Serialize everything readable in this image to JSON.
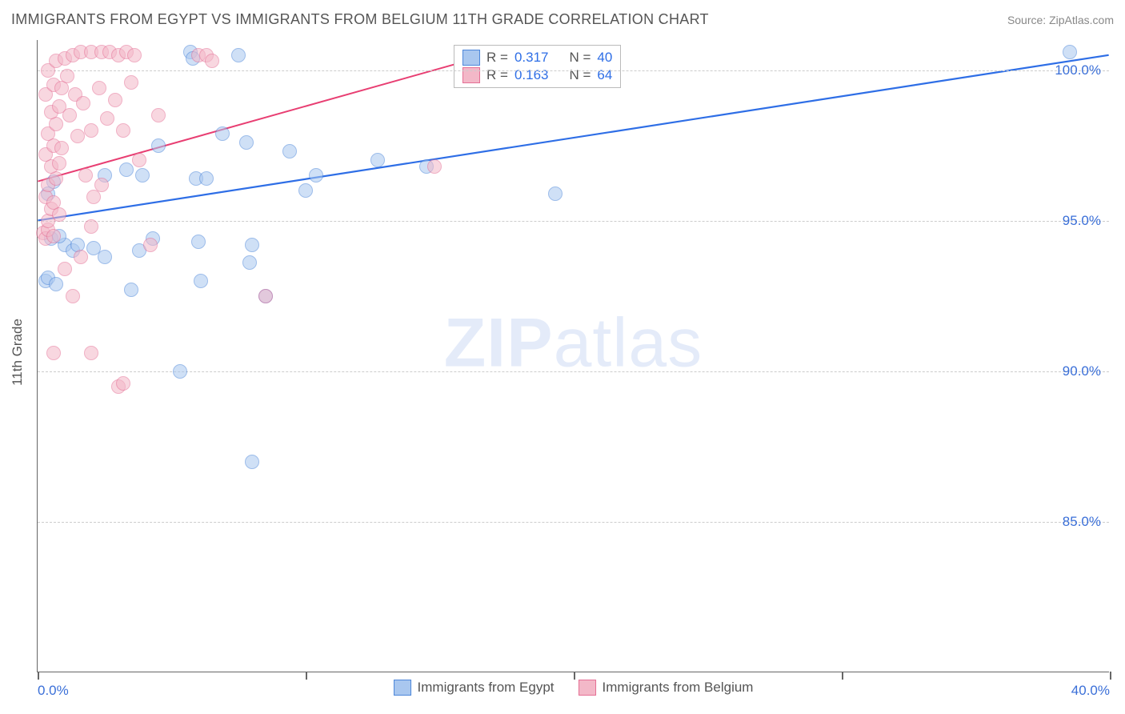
{
  "title": "IMMIGRANTS FROM EGYPT VS IMMIGRANTS FROM BELGIUM 11TH GRADE CORRELATION CHART",
  "source": "Source: ZipAtlas.com",
  "y_axis_title": "11th Grade",
  "watermark_a": "ZIP",
  "watermark_b": "atlas",
  "chart": {
    "type": "scatter",
    "xlim": [
      0,
      40
    ],
    "ylim": [
      80,
      101
    ],
    "x_unit": "%",
    "y_unit": "%",
    "x_ticks": [
      0,
      10,
      20,
      30,
      40
    ],
    "x_tick_labels": [
      "0.0%",
      "",
      "",
      "",
      "40.0%"
    ],
    "y_gridlines": [
      85,
      90,
      95,
      100
    ],
    "y_tick_labels": [
      "85.0%",
      "90.0%",
      "95.0%",
      "100.0%"
    ],
    "grid_color": "#cccccc",
    "axis_color": "#666666",
    "background_color": "#ffffff",
    "marker_radius": 9,
    "marker_stroke_width": 1.3,
    "series": [
      {
        "name": "Immigrants from Egypt",
        "fill": "#a9c7ef",
        "stroke": "#4d87da",
        "fill_opacity": 0.55,
        "R": "0.317",
        "N": "40",
        "trend": {
          "x1": 0,
          "y1": 95.0,
          "x2": 40,
          "y2": 100.5,
          "color": "#2e6ee6",
          "width": 2.2
        },
        "points": [
          [
            0.3,
            93.0
          ],
          [
            0.4,
            93.1
          ],
          [
            0.7,
            92.9
          ],
          [
            0.5,
            94.4
          ],
          [
            1.0,
            94.2
          ],
          [
            0.8,
            94.5
          ],
          [
            0.4,
            95.9
          ],
          [
            0.6,
            96.3
          ],
          [
            1.3,
            94.0
          ],
          [
            1.5,
            94.2
          ],
          [
            2.1,
            94.1
          ],
          [
            2.5,
            93.8
          ],
          [
            3.8,
            94.0
          ],
          [
            3.5,
            92.7
          ],
          [
            4.3,
            94.4
          ],
          [
            6.1,
            93.0
          ],
          [
            6.0,
            94.3
          ],
          [
            8.0,
            94.2
          ],
          [
            7.9,
            93.6
          ],
          [
            8.5,
            92.5
          ],
          [
            5.3,
            90.0
          ],
          [
            8.0,
            87.0
          ],
          [
            2.5,
            96.5
          ],
          [
            3.3,
            96.7
          ],
          [
            3.9,
            96.5
          ],
          [
            4.5,
            97.5
          ],
          [
            5.9,
            96.4
          ],
          [
            6.3,
            96.4
          ],
          [
            5.7,
            100.6
          ],
          [
            5.8,
            100.4
          ],
          [
            7.5,
            100.5
          ],
          [
            7.8,
            97.6
          ],
          [
            10.4,
            96.5
          ],
          [
            12.7,
            97.0
          ],
          [
            9.4,
            97.3
          ],
          [
            10.0,
            96.0
          ],
          [
            14.5,
            96.8
          ],
          [
            19.3,
            95.9
          ],
          [
            38.5,
            100.6
          ],
          [
            6.9,
            97.9
          ]
        ]
      },
      {
        "name": "Immigrants from Belgium",
        "fill": "#f3b8c8",
        "stroke": "#e56f95",
        "fill_opacity": 0.55,
        "R": "0.163",
        "N": "64",
        "trend": {
          "x1": 0,
          "y1": 96.3,
          "x2": 16,
          "y2": 100.3,
          "color": "#e83e72",
          "width": 2.0
        },
        "points": [
          [
            0.2,
            94.6
          ],
          [
            0.3,
            94.4
          ],
          [
            0.4,
            94.7
          ],
          [
            0.6,
            94.5
          ],
          [
            0.4,
            95.0
          ],
          [
            0.5,
            95.4
          ],
          [
            0.3,
            95.8
          ],
          [
            0.6,
            95.6
          ],
          [
            0.8,
            95.2
          ],
          [
            0.4,
            96.2
          ],
          [
            0.7,
            96.4
          ],
          [
            0.5,
            96.8
          ],
          [
            0.8,
            96.9
          ],
          [
            0.3,
            97.2
          ],
          [
            0.6,
            97.5
          ],
          [
            0.9,
            97.4
          ],
          [
            0.4,
            97.9
          ],
          [
            0.7,
            98.2
          ],
          [
            0.5,
            98.6
          ],
          [
            0.8,
            98.8
          ],
          [
            0.3,
            99.2
          ],
          [
            0.6,
            99.5
          ],
          [
            0.9,
            99.4
          ],
          [
            0.4,
            100.0
          ],
          [
            0.7,
            100.3
          ],
          [
            1.0,
            100.4
          ],
          [
            1.3,
            100.5
          ],
          [
            1.6,
            100.6
          ],
          [
            2.0,
            100.6
          ],
          [
            2.4,
            100.6
          ],
          [
            2.7,
            100.6
          ],
          [
            3.0,
            100.5
          ],
          [
            3.3,
            100.6
          ],
          [
            3.6,
            100.5
          ],
          [
            1.1,
            99.8
          ],
          [
            1.4,
            99.2
          ],
          [
            1.2,
            98.5
          ],
          [
            1.5,
            97.8
          ],
          [
            1.7,
            98.9
          ],
          [
            2.0,
            98.0
          ],
          [
            2.3,
            99.4
          ],
          [
            2.6,
            98.4
          ],
          [
            2.9,
            99.0
          ],
          [
            3.2,
            98.0
          ],
          [
            3.5,
            99.6
          ],
          [
            1.8,
            96.5
          ],
          [
            2.1,
            95.8
          ],
          [
            2.4,
            96.2
          ],
          [
            2.0,
            94.8
          ],
          [
            1.0,
            93.4
          ],
          [
            1.3,
            92.5
          ],
          [
            1.6,
            93.8
          ],
          [
            0.6,
            90.6
          ],
          [
            2.0,
            90.6
          ],
          [
            3.0,
            89.5
          ],
          [
            3.2,
            89.6
          ],
          [
            4.2,
            94.2
          ],
          [
            3.8,
            97.0
          ],
          [
            4.5,
            98.5
          ],
          [
            8.5,
            92.5
          ],
          [
            6.0,
            100.5
          ],
          [
            6.3,
            100.5
          ],
          [
            6.5,
            100.3
          ],
          [
            14.8,
            96.8
          ]
        ]
      }
    ]
  },
  "legend_top": {
    "rows": [
      {
        "swatch_fill": "#a9c7ef",
        "swatch_stroke": "#4d87da",
        "r_label": "R =",
        "r_val": "0.317",
        "n_label": "N =",
        "n_val": "40"
      },
      {
        "swatch_fill": "#f3b8c8",
        "swatch_stroke": "#e56f95",
        "r_label": "R =",
        "r_val": "0.163",
        "n_label": "N =",
        "n_val": "64"
      }
    ]
  },
  "legend_bottom": [
    {
      "swatch_fill": "#a9c7ef",
      "swatch_stroke": "#4d87da",
      "label": "Immigrants from Egypt"
    },
    {
      "swatch_fill": "#f3b8c8",
      "swatch_stroke": "#e56f95",
      "label": "Immigrants from Belgium"
    }
  ]
}
